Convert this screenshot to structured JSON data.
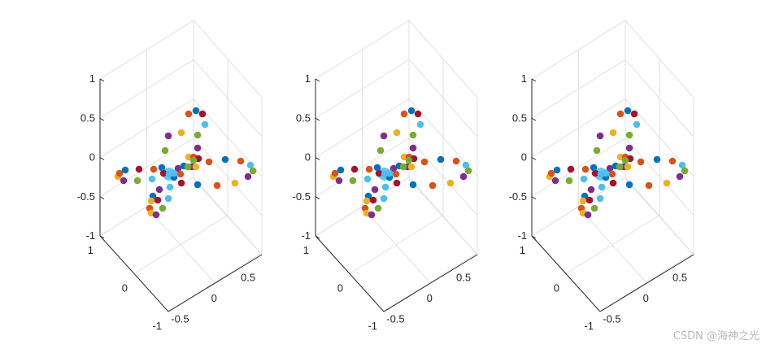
{
  "watermark": "CSDN @海神之光",
  "palette": [
    "#0072BD",
    "#D95319",
    "#EDB120",
    "#7E2F8E",
    "#77AC30",
    "#4DBEEE",
    "#A2142F"
  ],
  "chart_data": [
    {
      "type": "scatter",
      "view": "3d-isometric",
      "title": "",
      "xlabel": "",
      "ylabel": "",
      "zlabel": "",
      "xlim": [
        -1,
        1
      ],
      "ylim": [
        -1,
        1
      ],
      "zlim": [
        -1,
        1
      ],
      "xticks": [
        "-1",
        "0",
        "1"
      ],
      "yticks": [
        "-0.5",
        "0",
        "0.5"
      ],
      "zticks": [
        "-1",
        "-0.5",
        "0",
        "0.5",
        "1"
      ],
      "grid": true,
      "legend": "none"
    },
    {
      "type": "scatter",
      "view": "3d-isometric",
      "title": "",
      "xlabel": "",
      "ylabel": "",
      "zlabel": "",
      "xlim": [
        -1,
        1
      ],
      "ylim": [
        -1,
        1
      ],
      "zlim": [
        -1,
        1
      ],
      "xticks": [
        "-1",
        "0",
        "1"
      ],
      "yticks": [
        "-0.5",
        "0",
        "0.5"
      ],
      "zticks": [
        "-1",
        "-0.5",
        "0",
        "0.5",
        "1"
      ],
      "grid": true,
      "legend": "none"
    },
    {
      "type": "scatter",
      "view": "3d-isometric",
      "title": "",
      "xlabel": "",
      "ylabel": "",
      "zlabel": "",
      "xlim": [
        -1,
        1
      ],
      "ylim": [
        -1,
        1
      ],
      "zlim": [
        -1,
        1
      ],
      "xticks": [
        "-1",
        "0",
        "1"
      ],
      "yticks": [
        "-0.5",
        "0",
        "0.5"
      ],
      "zticks": [
        "-1",
        "-0.5",
        "0",
        "0.5",
        "1"
      ],
      "grid": true,
      "legend": "none"
    }
  ]
}
